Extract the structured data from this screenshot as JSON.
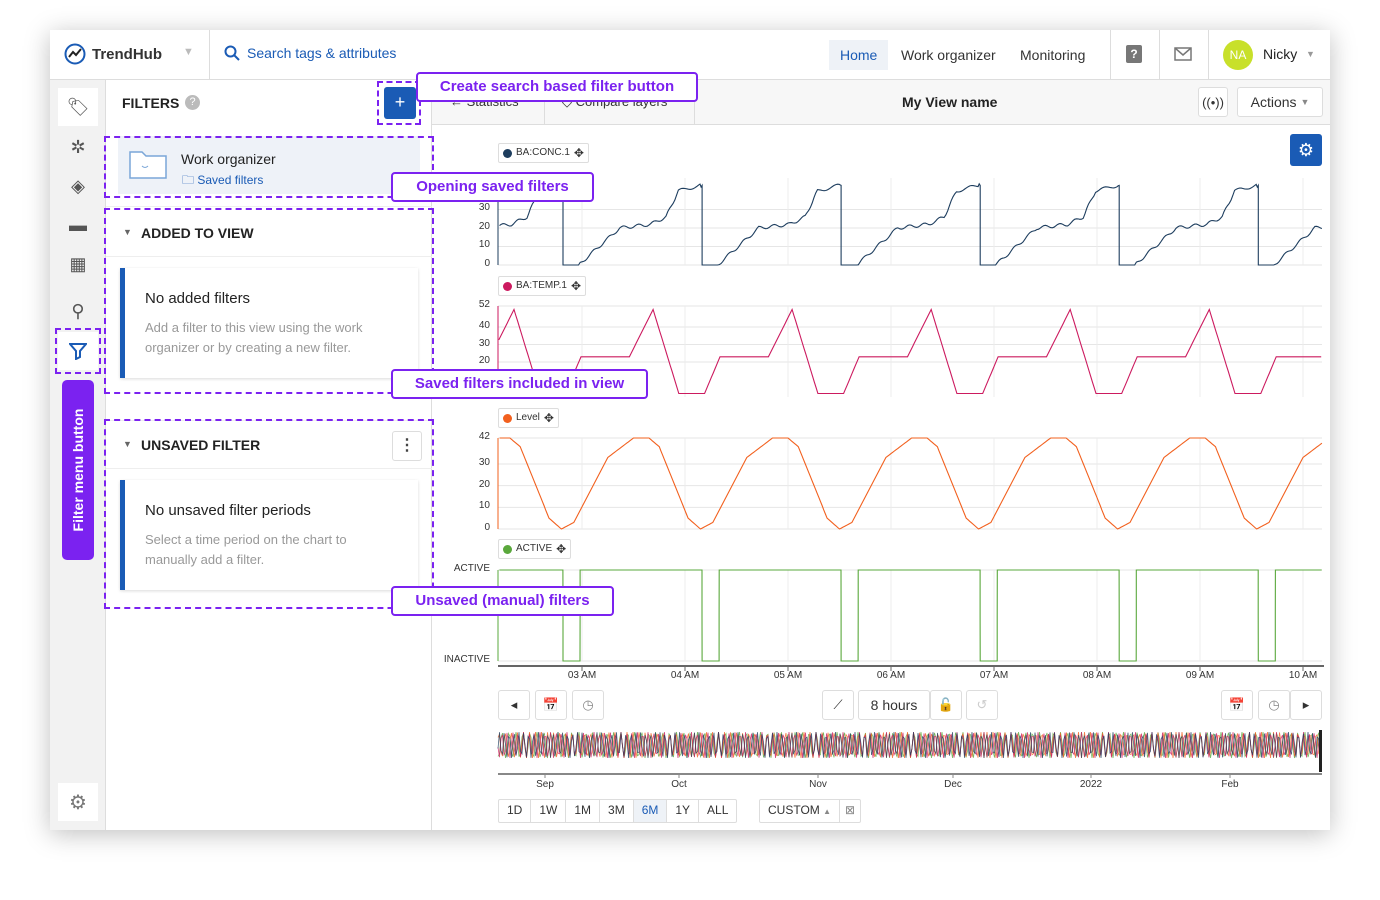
{
  "header": {
    "brand": "TrendHub",
    "search_placeholder": "Search tags & attributes",
    "nav": [
      "Home",
      "Work organizer",
      "Monitoring"
    ],
    "active_nav": "Home",
    "user_initials": "NA",
    "user_name": "Nicky"
  },
  "rail": {
    "icons": [
      "tag-icon",
      "scatter-icon",
      "layers-icon",
      "comment-icon",
      "dashboard-icon",
      "search-icon",
      "filter-icon"
    ],
    "settings_icon": "gear-icon",
    "filter_menu_label": "Filter menu button"
  },
  "filters": {
    "title": "FILTERS",
    "add_label": "+",
    "work_organizer": {
      "title": "Work organizer",
      "link": "Saved filters"
    },
    "added": {
      "title": "ADDED TO VIEW",
      "empty_title": "No added filters",
      "empty_text": "Add a filter to this view using the work organizer or by creating a new filter."
    },
    "unsaved": {
      "title": "UNSAVED FILTER",
      "empty_title": "No unsaved filter periods",
      "empty_text": "Select a time period on the chart to manually add a filter."
    }
  },
  "toolbar": {
    "tabs": [
      "Statistics",
      "Compare layers"
    ],
    "view_name": "My View name",
    "actions_label": "Actions"
  },
  "annotations": {
    "create": "Create search based filter button",
    "opening": "Opening saved filters",
    "included": "Saved filters included in view",
    "unsaved": "Unsaved (manual) filters"
  },
  "colors": {
    "accent": "#1a5bb5",
    "annotation": "#7b22f0",
    "conc": "#1d3d5e",
    "temp": "#cc1a5f",
    "level": "#f2601e",
    "active": "#5aa83c"
  },
  "chart_data": {
    "type": "line",
    "x_ticks": [
      "03 AM",
      "04 AM",
      "05 AM",
      "06 AM",
      "07 AM",
      "08 AM",
      "09 AM",
      "10 AM"
    ],
    "cycle_hours": 1.35,
    "panels": [
      {
        "name": "BA:CONC.1",
        "color": "#1d3d5e",
        "yticks": [
          0,
          10,
          20,
          30
        ],
        "ylim": [
          0,
          47
        ],
        "cycle_start": 2.816,
        "cycle": [
          [
            0,
            0
          ],
          [
            0.15,
            0
          ],
          [
            0.55,
            20
          ],
          [
            0.85,
            22
          ],
          [
            1.0,
            26
          ],
          [
            1.12,
            40
          ],
          [
            1.33,
            43
          ],
          [
            1.35,
            43
          ]
        ]
      },
      {
        "name": "BA:TEMP.1",
        "color": "#cc1a5f",
        "yticks": [
          20,
          30,
          40,
          52
        ],
        "ylim": [
          0,
          52
        ],
        "cycle_start": 2.34,
        "cycle": [
          [
            0,
            50
          ],
          [
            0.25,
            2
          ],
          [
            0.5,
            2
          ],
          [
            0.65,
            23
          ],
          [
            1.12,
            23
          ],
          [
            1.35,
            50
          ]
        ]
      },
      {
        "name": "Level",
        "color": "#f2601e",
        "yticks": [
          0,
          10,
          20,
          30,
          42
        ],
        "ylim": [
          0,
          42
        ],
        "cycle_start": 2.3,
        "cycle": [
          [
            0,
            42
          ],
          [
            0.1,
            38
          ],
          [
            0.38,
            5
          ],
          [
            0.5,
            0
          ],
          [
            0.62,
            3
          ],
          [
            0.95,
            33
          ],
          [
            1.2,
            42
          ],
          [
            1.35,
            42
          ]
        ]
      },
      {
        "name": "ACTIVE",
        "color": "#5aa83c",
        "ycats": [
          "INACTIVE",
          "ACTIVE"
        ],
        "cycle_start": 2.816,
        "cycle": [
          [
            0,
            0
          ],
          [
            0.165,
            0
          ],
          [
            0.166,
            1
          ],
          [
            1.349,
            1
          ],
          [
            1.35,
            0
          ]
        ]
      }
    ],
    "navigator_ticks": [
      "Sep",
      "Oct",
      "Nov",
      "Dec",
      "2022",
      "Feb"
    ],
    "window_label": "8 hours",
    "ranges": [
      "1D",
      "1W",
      "1M",
      "3M",
      "6M",
      "1Y",
      "ALL"
    ],
    "selected_range": "6M",
    "custom_label": "CUSTOM"
  }
}
